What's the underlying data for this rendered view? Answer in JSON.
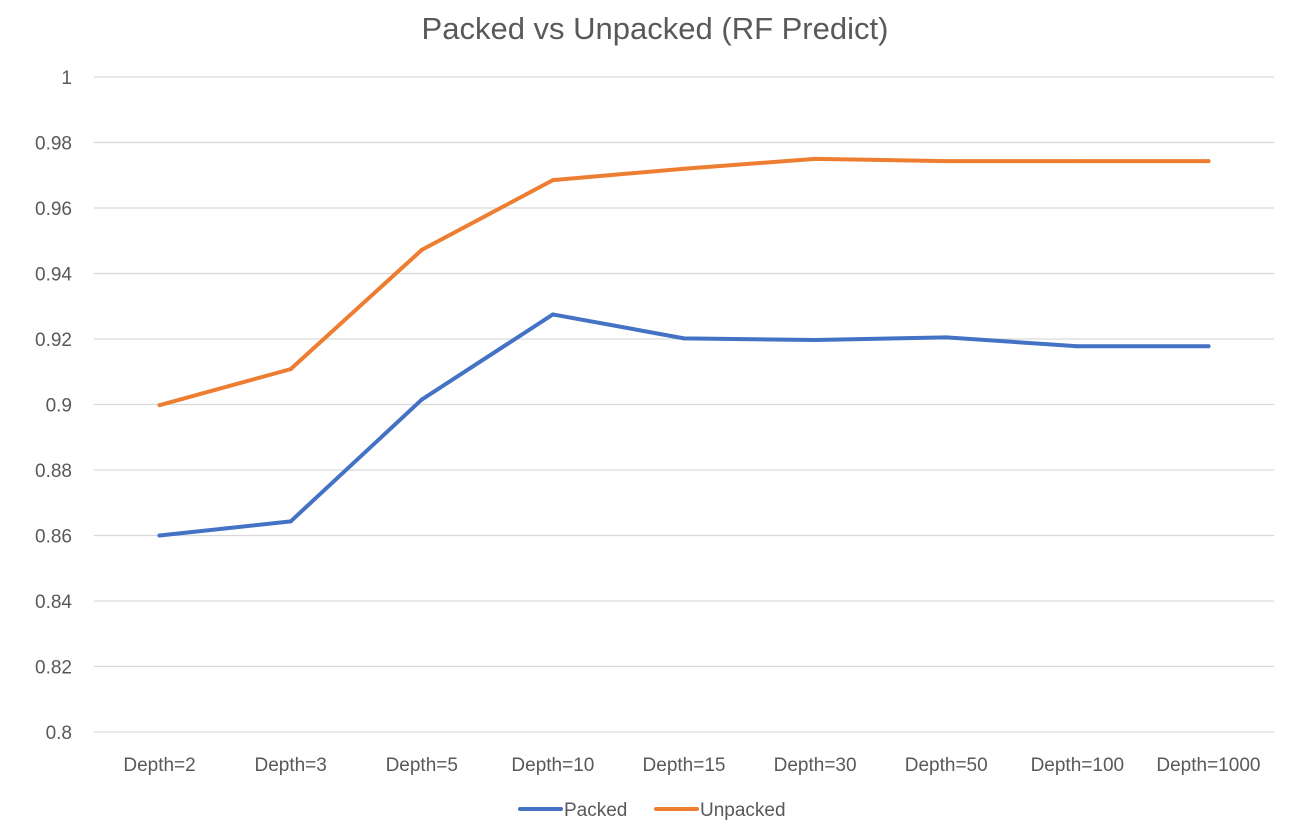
{
  "chart_data": {
    "type": "line",
    "title": "Packed vs Unpacked (RF Predict)",
    "xlabel": "",
    "ylabel": "",
    "categories": [
      "Depth=2",
      "Depth=3",
      "Depth=5",
      "Depth=10",
      "Depth=15",
      "Depth=30",
      "Depth=50",
      "Depth=100",
      "Depth=1000"
    ],
    "series": [
      {
        "name": "Packed",
        "color": "#4472c4",
        "values": [
          0.86,
          0.8643,
          0.9015,
          0.9275,
          0.9202,
          0.9197,
          0.9205,
          0.9178,
          0.9178
        ]
      },
      {
        "name": "Unpacked",
        "color": "#ed7d31",
        "values": [
          0.8998,
          0.9108,
          0.9472,
          0.9685,
          0.972,
          0.975,
          0.9743,
          0.9743,
          0.9743
        ]
      }
    ],
    "ylim": [
      0.8,
      1.0
    ],
    "yticks": [
      0.8,
      0.82,
      0.84,
      0.86,
      0.88,
      0.9,
      0.92,
      0.94,
      0.96,
      0.98,
      1
    ],
    "ytick_labels": [
      "0.8",
      "0.82",
      "0.84",
      "0.86",
      "0.88",
      "0.9",
      "0.92",
      "0.94",
      "0.96",
      "0.98",
      "1"
    ],
    "grid": true,
    "legend_position": "bottom"
  }
}
